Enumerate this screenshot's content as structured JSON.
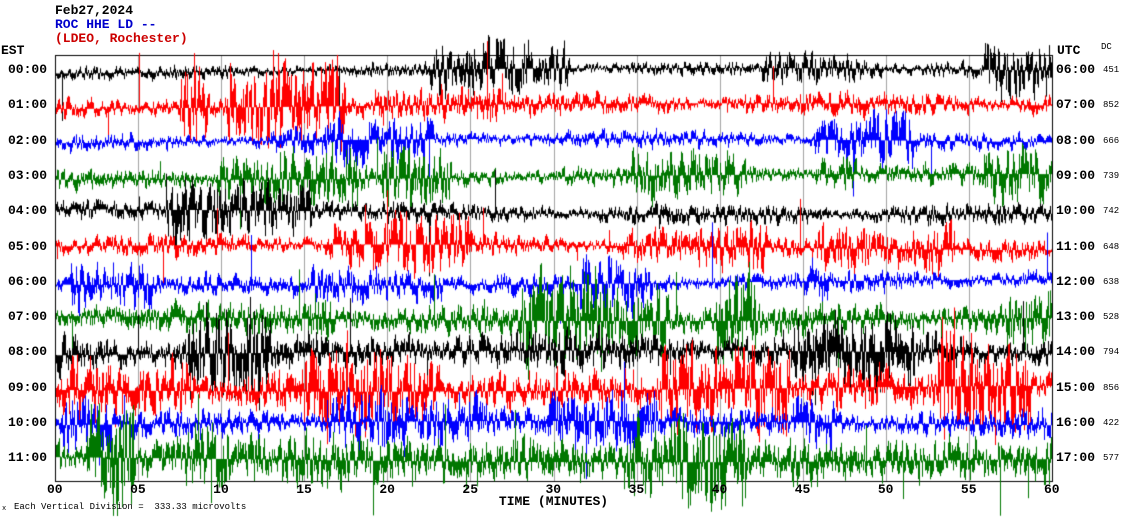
{
  "header": {
    "date": "Feb27,2024",
    "station": "ROC HHE LD --",
    "location": "(LDEO, Rochester)",
    "date_color": "#000000",
    "station_color": "#0000cc",
    "location_color": "#cc0000"
  },
  "axes": {
    "left_label": "EST",
    "right_label": "UTC",
    "dc_label": "DC",
    "x_label": "TIME (MINUTES)",
    "x_ticks": [
      "00",
      "05",
      "10",
      "15",
      "20",
      "25",
      "30",
      "35",
      "40",
      "45",
      "50",
      "55",
      "60"
    ],
    "x_range_minutes": [
      0,
      60
    ],
    "footnote_marker": "x",
    "footnote": "Each Vertical Division =  333.33 microvolts"
  },
  "chart_data": {
    "type": "line",
    "subtype": "seismogram-helicorder",
    "title": "ROC HHE LD -- (LDEO, Rochester) Feb27,2024",
    "xlabel": "TIME (MINUTES)",
    "x_range_minutes": [
      0,
      60
    ],
    "minutes_per_row": 60,
    "vertical_division_microvolts": 333.33,
    "colors_cycle": [
      "#000000",
      "#ff0000",
      "#0000ff",
      "#007700"
    ],
    "rows": [
      {
        "est": "00:00",
        "utc": "06:00",
        "dc": "451",
        "color": "#000000",
        "amp": 5,
        "spike_rate": 0.004
      },
      {
        "est": "01:00",
        "utc": "07:00",
        "dc": "852",
        "color": "#ff0000",
        "amp": 8,
        "spike_rate": 0.006
      },
      {
        "est": "02:00",
        "utc": "08:00",
        "dc": "666",
        "color": "#0000ff",
        "amp": 6,
        "spike_rate": 0.004
      },
      {
        "est": "03:00",
        "utc": "09:00",
        "dc": "739",
        "color": "#007700",
        "amp": 7,
        "spike_rate": 0.005
      },
      {
        "est": "04:00",
        "utc": "10:00",
        "dc": "742",
        "color": "#000000",
        "amp": 7,
        "spike_rate": 0.005
      },
      {
        "est": "05:00",
        "utc": "11:00",
        "dc": "648",
        "color": "#ff0000",
        "amp": 7,
        "spike_rate": 0.006
      },
      {
        "est": "06:00",
        "utc": "12:00",
        "dc": "638",
        "color": "#0000ff",
        "amp": 7,
        "spike_rate": 0.005
      },
      {
        "est": "07:00",
        "utc": "13:00",
        "dc": "528",
        "color": "#007700",
        "amp": 11,
        "spike_rate": 0.008
      },
      {
        "est": "08:00",
        "utc": "14:00",
        "dc": "794",
        "color": "#000000",
        "amp": 13,
        "spike_rate": 0.009
      },
      {
        "est": "09:00",
        "utc": "15:00",
        "dc": "856",
        "color": "#ff0000",
        "amp": 13,
        "spike_rate": 0.009
      },
      {
        "est": "10:00",
        "utc": "16:00",
        "dc": "422",
        "color": "#0000ff",
        "amp": 10,
        "spike_rate": 0.007
      },
      {
        "est": "11:00",
        "utc": "17:00",
        "dc": "577",
        "color": "#007700",
        "amp": 14,
        "spike_rate": 0.01
      }
    ]
  }
}
